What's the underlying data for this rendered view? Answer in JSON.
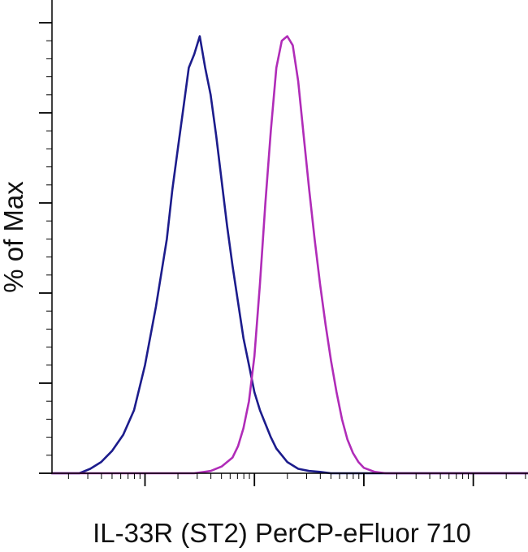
{
  "chart_data": {
    "type": "line",
    "title": "",
    "xlabel": "IL-33R (ST2) PerCP-eFluor 710",
    "ylabel": "% of Max",
    "x_scale": "log",
    "xlim": [
      -0.85,
      3.5
    ],
    "ylim": [
      0,
      100
    ],
    "grid": false,
    "legend": "none",
    "series": [
      {
        "color": "#1c1c8c",
        "x": [
          -1.0,
          -0.6,
          -0.5,
          -0.4,
          -0.3,
          -0.2,
          -0.1,
          0.0,
          0.1,
          0.2,
          0.25,
          0.3,
          0.35,
          0.4,
          0.45,
          0.5,
          0.55,
          0.6,
          0.65,
          0.7,
          0.75,
          0.8,
          0.85,
          0.9,
          0.95,
          1.0,
          1.05,
          1.1,
          1.15,
          1.2,
          1.3,
          1.4,
          1.5,
          1.6,
          1.7,
          3.6
        ],
        "y": [
          0,
          0,
          1,
          2.5,
          5,
          8.5,
          14,
          24,
          37,
          52,
          63,
          72,
          81,
          90,
          93,
          97,
          90,
          84,
          75,
          65,
          55,
          46,
          38,
          30,
          24,
          18,
          14,
          11,
          8,
          5.5,
          2.5,
          1,
          0.5,
          0.3,
          0,
          0
        ]
      },
      {
        "color": "#b02cb8",
        "x": [
          -1.0,
          0.45,
          0.6,
          0.7,
          0.8,
          0.85,
          0.9,
          0.95,
          1.0,
          1.05,
          1.1,
          1.15,
          1.2,
          1.25,
          1.3,
          1.35,
          1.4,
          1.45,
          1.5,
          1.55,
          1.6,
          1.65,
          1.7,
          1.75,
          1.8,
          1.85,
          1.9,
          1.95,
          2.0,
          2.1,
          2.2,
          3.6
        ],
        "y": [
          0,
          0,
          0.5,
          1.5,
          3.5,
          6,
          10,
          16,
          26,
          42,
          60,
          76,
          90,
          96,
          97,
          95,
          87,
          75,
          63,
          52,
          42,
          33,
          25,
          18,
          12,
          7.5,
          4.5,
          2.5,
          1.2,
          0.3,
          0,
          0
        ]
      }
    ]
  }
}
